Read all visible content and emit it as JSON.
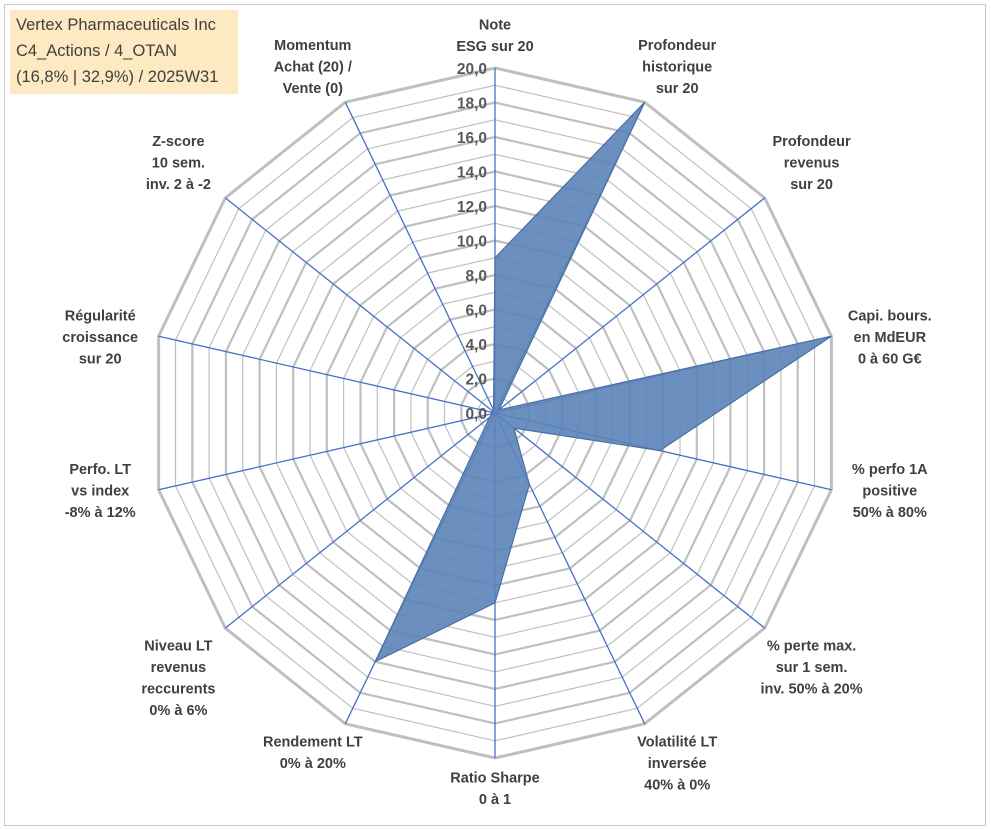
{
  "title_box": {
    "line1": "Vertex Pharmaceuticals Inc",
    "line2": "C4_Actions / 4_OTAN",
    "line3": "(16,8% | 32,9%) / 2025W31"
  },
  "chart_data": {
    "type": "radar",
    "rmax": 20,
    "ticks": [
      "0,0",
      "2,0",
      "4,0",
      "6,0",
      "8,0",
      "10,0",
      "12,0",
      "14,0",
      "16,0",
      "18,0",
      "20,0"
    ],
    "axes": [
      [
        "Note",
        "ESG sur 20"
      ],
      [
        "Profondeur",
        "historique",
        "sur 20"
      ],
      [
        "Profondeur",
        "revenus",
        "sur 20"
      ],
      [
        "Capi. bours.",
        "en MdEUR",
        "0 à 60 G€"
      ],
      [
        "% perfo 1A",
        "positive",
        "50% à 80%"
      ],
      [
        "% perte max.",
        "sur 1 sem.",
        "inv. 50% à 20%"
      ],
      [
        "Volatilité LT",
        "inversée",
        "40% à 0%"
      ],
      [
        "Ratio Sharpe",
        "0 à 1"
      ],
      [
        "Rendement LT",
        "0% à 20%"
      ],
      [
        "Niveau LT",
        "revenus",
        "reccurents",
        "0% à 6%"
      ],
      [
        "Perfo. LT",
        "vs index",
        "-8% à 12%"
      ],
      [
        "Régularité",
        "croissance",
        "sur 20"
      ],
      [
        "Z-score",
        "10 sem.",
        "inv. 2 à -2"
      ],
      [
        "Momentum",
        "Achat (20) /",
        "Vente (0)"
      ]
    ],
    "values": [
      9.0,
      20.0,
      0.3,
      20.0,
      9.8,
      1.4,
      4.6,
      11.0,
      16.0,
      0.4,
      0.2,
      0.2,
      0.2,
      0.2
    ],
    "colors": {
      "grid": "#bfbfbf",
      "spoke": "#4472c4",
      "fill": "#5b84b8",
      "stroke": "#4a6fa5"
    }
  }
}
